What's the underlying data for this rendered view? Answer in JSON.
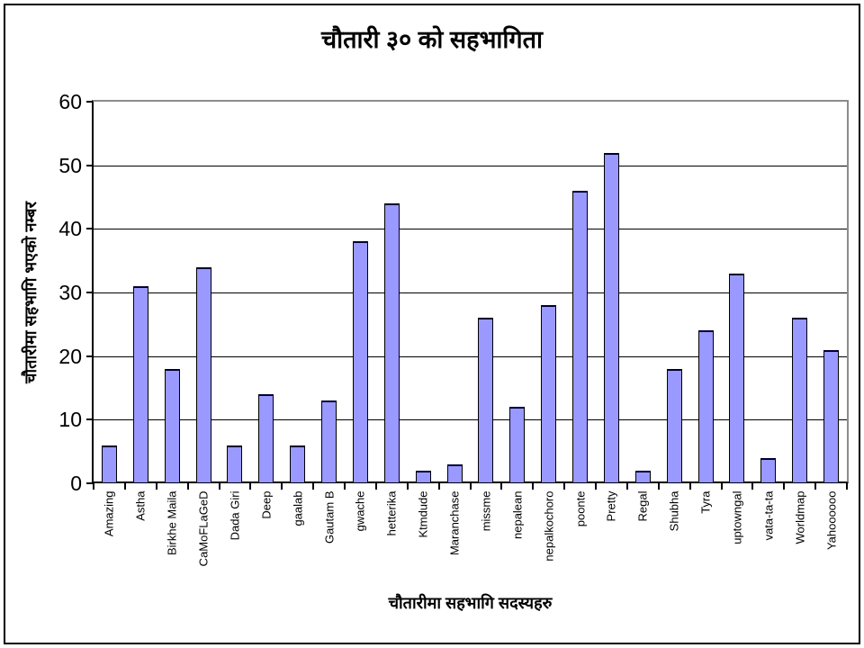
{
  "chart_data": {
    "type": "bar",
    "title": "चौतारी ३० को सहभागिता",
    "xlabel": "चौतारीमा सहभागि सदस्यहरु",
    "ylabel": "चौतारीमा सहभागि भएको नम्बर",
    "categories": [
      "Amazing",
      "Astha",
      "Birkhe Maila",
      "CaMoFLaGeD",
      "Dada Giri",
      "Deep",
      "gaalab",
      "Gautam B",
      "gwache",
      "hetterika",
      "Ktmdude",
      "Maranchase",
      "missme",
      "nepalean",
      "nepalkochoro",
      "poonte",
      "Pretty",
      "Regal",
      "Shubha",
      "Tyra",
      "uptowngal",
      "vata-ta-ta",
      "Worldmap",
      "Yahoooooo"
    ],
    "values": [
      6,
      31,
      18,
      34,
      6,
      14,
      6,
      13,
      38,
      44,
      2,
      3,
      26,
      12,
      28,
      46,
      52,
      2,
      18,
      24,
      33,
      4,
      26,
      21
    ],
    "ylim": [
      0,
      60
    ],
    "yticks": [
      0,
      10,
      20,
      30,
      40,
      50,
      60
    ],
    "grid": "horizontal",
    "legend": "none",
    "colors": {
      "bar_fill": "#9999ff",
      "bar_border": "#000000",
      "gridline": "#000000",
      "plot_border_gray": "#8c8c8c",
      "axis_black": "#000000",
      "background": "#ffffff"
    }
  }
}
